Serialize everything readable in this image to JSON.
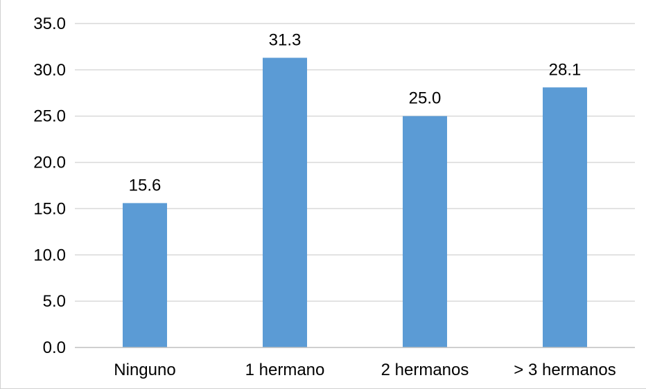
{
  "chart_data": {
    "type": "bar",
    "title": "",
    "xlabel": "",
    "ylabel": "",
    "categories": [
      "Ninguno",
      "1 hermano",
      "2 hermanos",
      "> 3 hermanos"
    ],
    "values": [
      15.6,
      31.3,
      25.0,
      28.1
    ],
    "data_labels": [
      "15.6",
      "31.3",
      "25.0",
      "28.1"
    ],
    "ylim": [
      0,
      35
    ],
    "y_ticks": [
      0,
      5,
      10,
      15,
      20,
      25,
      30,
      35
    ],
    "y_tick_labels": [
      "0.0",
      "5.0",
      "10.0",
      "15.0",
      "20.0",
      "25.0",
      "30.0",
      "35.0"
    ],
    "grid": true,
    "legend": "none",
    "bar_color": "#5b9bd5"
  }
}
